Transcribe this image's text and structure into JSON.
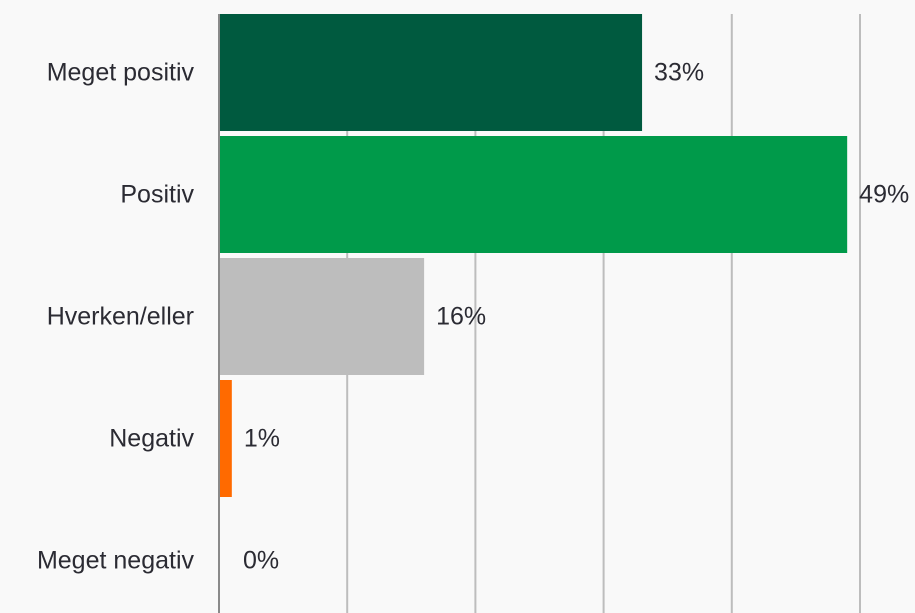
{
  "chart_data": {
    "type": "bar",
    "orientation": "horizontal",
    "categories": [
      "Meget positiv",
      "Positiv",
      "Hverken/eller",
      "Negativ",
      "Meget negativ"
    ],
    "values": [
      33,
      49,
      16,
      1,
      0
    ],
    "value_labels": [
      "33%",
      "49%",
      "16%",
      "1%",
      "0%"
    ],
    "colors": [
      "#005a3f",
      "#009a4a",
      "#bdbdbd",
      "#ff6a00",
      "#005a3f"
    ],
    "xlim": [
      0,
      50
    ],
    "gridlines_at": [
      0,
      10,
      20,
      30,
      40,
      50
    ],
    "grid": true,
    "title": "",
    "xlabel": "",
    "ylabel": ""
  }
}
